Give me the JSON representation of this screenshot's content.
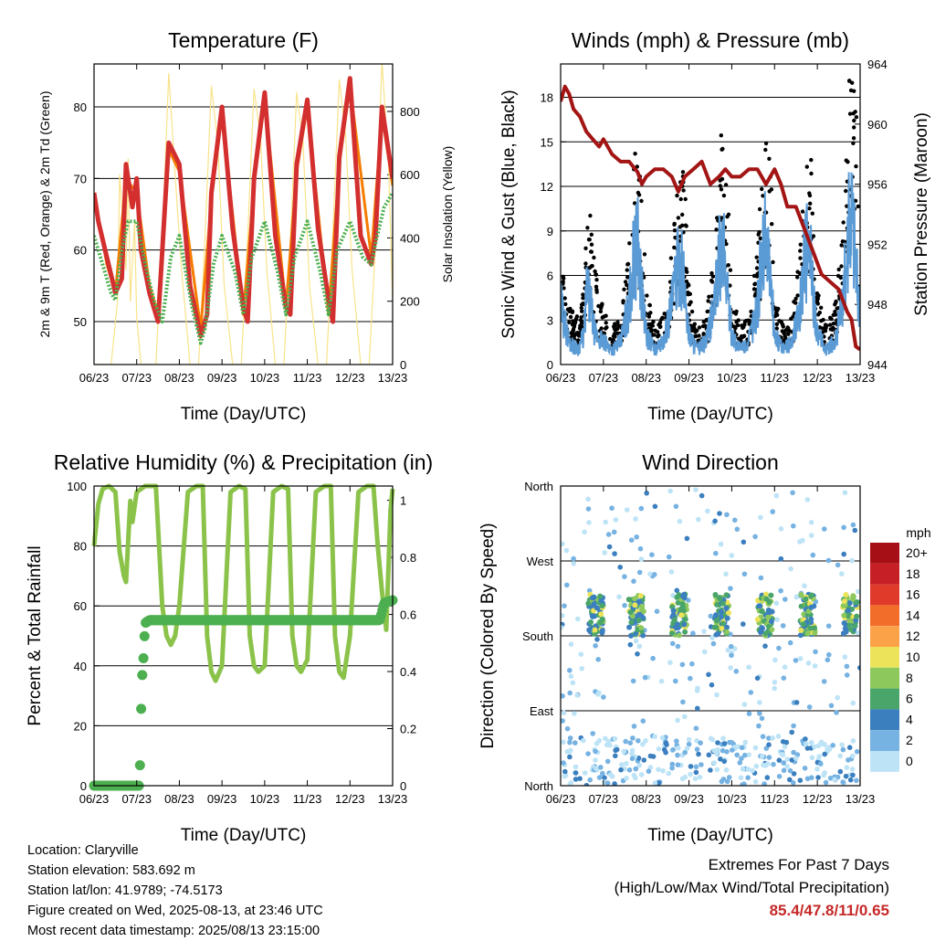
{
  "chart_data": [
    {
      "type": "line",
      "title": "Temperature (F)",
      "xlabel": "Time (Day/UTC)",
      "ylabel": "2m & 9m T (Red, Orange) & 2m Td (Green)",
      "y2label": "Solar Insolation (Yellow)",
      "categories": [
        "06/23",
        "07/23",
        "08/23",
        "09/23",
        "10/23",
        "11/23",
        "12/23",
        "13/23"
      ],
      "ylim": [
        44,
        86
      ],
      "yticks": [
        50,
        60,
        70,
        80
      ],
      "y2lim": [
        0,
        950
      ],
      "y2ticks": [
        0,
        200,
        400,
        600,
        800
      ],
      "grid": true,
      "series": [
        {
          "name": "2m T",
          "color": "#d32f2f",
          "x": [
            0,
            0.1,
            0.3,
            0.5,
            0.65,
            0.75,
            0.9,
            1.0,
            1.1,
            1.3,
            1.5,
            1.75,
            2.0,
            2.25,
            2.5,
            2.65,
            2.75,
            3.0,
            3.25,
            3.5,
            3.6,
            3.75,
            4.0,
            4.25,
            4.5,
            4.6,
            4.75,
            5.0,
            5.25,
            5.5,
            5.6,
            5.75,
            6.0,
            6.25,
            6.5,
            6.6,
            6.75,
            7.0
          ],
          "values": [
            68,
            64,
            59,
            54,
            56,
            72,
            66,
            70,
            60,
            54,
            50,
            75,
            72,
            55,
            48,
            51,
            68,
            80,
            63,
            52,
            50,
            70,
            82,
            62,
            52,
            51,
            72,
            81,
            63,
            53,
            50,
            73,
            84,
            62,
            58,
            62,
            80,
            70
          ]
        },
        {
          "name": "9m T",
          "color": "#f57c00",
          "x": [
            0,
            0.3,
            0.5,
            0.75,
            1.0,
            1.3,
            1.5,
            1.75,
            2.0,
            2.5,
            2.75,
            3.0,
            3.5,
            3.75,
            4.0,
            4.5,
            4.75,
            5.0,
            5.5,
            5.75,
            6.0,
            6.5,
            6.75,
            7.0
          ],
          "values": [
            68,
            58,
            54,
            70,
            68,
            55,
            51,
            74,
            71,
            49,
            67,
            79,
            51,
            69,
            81,
            52,
            71,
            80,
            51,
            72,
            83,
            59,
            79,
            69
          ]
        },
        {
          "name": "2m Td",
          "color": "#4caf50",
          "x": [
            0,
            0.2,
            0.4,
            0.5,
            0.65,
            0.8,
            1.0,
            1.2,
            1.4,
            1.6,
            1.8,
            2.0,
            2.3,
            2.5,
            2.6,
            2.8,
            3.0,
            3.3,
            3.5,
            3.7,
            4.0,
            4.3,
            4.5,
            4.7,
            5.0,
            5.3,
            5.5,
            5.7,
            6.0,
            6.3,
            6.5,
            6.6,
            6.8,
            7.0
          ],
          "values": [
            62,
            58,
            54,
            53,
            60,
            64,
            64,
            58,
            53,
            50,
            59,
            62,
            52,
            47,
            49,
            58,
            62,
            57,
            51,
            59,
            64,
            57,
            51,
            59,
            64,
            57,
            51,
            60,
            64,
            59,
            58,
            61,
            66,
            68
          ]
        },
        {
          "name": "Solar Insolation",
          "axis": "y2",
          "color": "#f8e38a",
          "x": [
            0,
            0.25,
            0.4,
            0.55,
            0.6,
            0.75,
            0.8,
            0.85,
            0.95,
            1.0,
            1.1,
            1.25,
            1.45,
            1.6,
            1.75,
            1.9,
            2.05,
            2.25,
            2.45,
            2.6,
            2.75,
            2.9,
            3.05,
            3.25,
            3.45,
            3.6,
            3.75,
            3.9,
            4.05,
            4.25,
            4.45,
            4.6,
            4.75,
            4.9,
            5.05,
            5.25,
            5.45,
            5.6,
            5.75,
            5.9,
            6.05,
            6.25,
            6.45,
            6.6,
            6.75,
            6.9,
            7.0
          ],
          "values": [
            0,
            0,
            0,
            200,
            600,
            300,
            650,
            200,
            450,
            150,
            0,
            0,
            0,
            400,
            920,
            600,
            300,
            0,
            0,
            400,
            880,
            700,
            250,
            0,
            0,
            400,
            870,
            720,
            300,
            0,
            0,
            380,
            860,
            700,
            250,
            0,
            0,
            420,
            900,
            720,
            300,
            0,
            0,
            380,
            960,
            650,
            200
          ]
        }
      ]
    },
    {
      "type": "line",
      "title": "Winds (mph) & Pressure (mb)",
      "xlabel": "Time (Day/UTC)",
      "ylabel": "Sonic Wind & Gust (Blue, Black)",
      "y2label": "Station Pressure (Maroon)",
      "categories": [
        "06/23",
        "07/23",
        "08/23",
        "09/23",
        "10/23",
        "11/23",
        "12/23",
        "13/23"
      ],
      "ylim": [
        0,
        20.25
      ],
      "yticks": [
        0,
        3,
        6,
        9,
        12,
        15,
        18
      ],
      "y2lim": [
        944,
        964
      ],
      "y2ticks": [
        944,
        948,
        952,
        956,
        960,
        964
      ],
      "grid": true,
      "series": [
        {
          "name": "Pressure",
          "axis": "y2",
          "color": "#a31515",
          "x": [
            0,
            0.1,
            0.2,
            0.3,
            0.45,
            0.6,
            0.75,
            0.9,
            1.0,
            1.2,
            1.4,
            1.6,
            1.8,
            1.9,
            2.0,
            2.2,
            2.4,
            2.6,
            2.75,
            2.9,
            3.1,
            3.3,
            3.5,
            3.7,
            3.85,
            4.0,
            4.2,
            4.4,
            4.6,
            4.8,
            5.0,
            5.15,
            5.3,
            5.5,
            5.7,
            5.9,
            6.1,
            6.3,
            6.5,
            6.7,
            6.8,
            6.9,
            7.0
          ],
          "values": [
            961.5,
            962.5,
            962,
            961,
            960.5,
            959.5,
            959,
            958.5,
            959,
            958,
            957.5,
            957.5,
            956.8,
            956,
            956.5,
            957,
            957,
            956.5,
            955.5,
            956.5,
            957,
            957.5,
            956,
            956.5,
            957,
            956.5,
            956.5,
            957,
            957,
            956,
            957,
            956,
            954.5,
            954.5,
            953,
            951.5,
            950,
            949.5,
            949,
            947.5,
            947,
            945.2,
            945
          ]
        },
        {
          "name": "Sonic Wind",
          "color": "#5b9bd5",
          "x": [
            0,
            0.2,
            0.4,
            0.55,
            0.6,
            0.7,
            0.8,
            1.0,
            1.2,
            1.4,
            1.6,
            1.7,
            1.8,
            1.9,
            2.0,
            2.2,
            2.4,
            2.6,
            2.7,
            2.8,
            2.9,
            3.0,
            3.2,
            3.4,
            3.6,
            3.7,
            3.8,
            3.9,
            4.0,
            4.2,
            4.4,
            4.6,
            4.7,
            4.8,
            4.9,
            5.0,
            5.2,
            5.4,
            5.6,
            5.7,
            5.8,
            5.9,
            6.0,
            6.2,
            6.4,
            6.6,
            6.7,
            6.8,
            6.9,
            7.0
          ],
          "values": [
            4,
            1.5,
            1,
            2,
            5,
            4,
            2,
            1.5,
            1,
            1.5,
            4,
            7,
            8,
            5,
            2,
            1,
            1.5,
            4,
            6,
            7,
            5,
            2,
            1,
            1.5,
            4,
            7,
            8,
            5,
            2,
            1,
            1.5,
            4,
            7,
            9,
            6,
            2,
            1,
            1.5,
            4,
            7,
            8,
            5,
            2,
            1,
            1.5,
            4,
            8,
            11,
            7,
            3
          ]
        },
        {
          "name": "Gust",
          "color": "#000000",
          "x": [
            0,
            0.2,
            0.4,
            0.55,
            0.65,
            0.8,
            1.0,
            1.2,
            1.4,
            1.6,
            1.75,
            1.9,
            2.0,
            2.2,
            2.4,
            2.6,
            2.75,
            2.9,
            3.0,
            3.2,
            3.4,
            3.6,
            3.75,
            3.9,
            4.0,
            4.2,
            4.4,
            4.6,
            4.75,
            4.9,
            5.0,
            5.2,
            5.4,
            5.6,
            5.75,
            5.9,
            6.0,
            6.2,
            6.4,
            6.6,
            6.75,
            6.85,
            6.95,
            7.0
          ],
          "values": [
            6,
            3,
            2.5,
            4,
            10,
            5,
            3,
            2,
            2.5,
            6,
            12,
            9,
            4,
            2,
            2.5,
            6,
            11,
            10,
            4,
            2,
            2.5,
            6,
            12,
            10,
            4,
            2,
            2.5,
            6,
            12,
            12,
            4,
            2,
            2.5,
            6,
            12,
            10,
            4,
            2,
            3,
            7,
            15,
            18,
            10,
            5
          ]
        }
      ]
    },
    {
      "type": "line",
      "title": "Relative Humidity (%) & Precipitation (in)",
      "xlabel": "Time (Day/UTC)",
      "ylabel": "Percent & Total Rainfall",
      "categories": [
        "06/23",
        "07/23",
        "08/23",
        "09/23",
        "10/23",
        "11/23",
        "12/23",
        "13/23"
      ],
      "ylim": [
        0,
        100
      ],
      "yticks": [
        0,
        20,
        40,
        60,
        80,
        100
      ],
      "y2lim": [
        0,
        1.05
      ],
      "y2ticks": [
        0.0,
        0.2,
        0.4,
        0.6,
        0.8,
        1.0
      ],
      "grid": true,
      "series": [
        {
          "name": "Relative Humidity",
          "color": "#8bc34a",
          "x": [
            0,
            0.1,
            0.2,
            0.35,
            0.5,
            0.6,
            0.7,
            0.75,
            0.85,
            0.9,
            1.0,
            1.2,
            1.45,
            1.6,
            1.7,
            1.8,
            1.9,
            2.0,
            2.2,
            2.4,
            2.55,
            2.65,
            2.75,
            2.85,
            3.0,
            3.2,
            3.4,
            3.55,
            3.65,
            3.75,
            3.85,
            4.0,
            4.2,
            4.4,
            4.55,
            4.65,
            4.75,
            4.85,
            5.0,
            5.2,
            5.4,
            5.55,
            5.65,
            5.75,
            5.85,
            6.0,
            6.2,
            6.4,
            6.55,
            6.65,
            6.75,
            6.85,
            6.95,
            7.0
          ],
          "values": [
            80,
            94,
            99,
            100,
            98,
            78,
            70,
            68,
            95,
            88,
            98,
            100,
            100,
            60,
            50,
            47,
            50,
            60,
            98,
            100,
            100,
            50,
            38,
            35,
            40,
            98,
            100,
            99,
            50,
            40,
            38,
            40,
            98,
            100,
            99,
            50,
            40,
            38,
            42,
            98,
            100,
            100,
            50,
            38,
            36,
            50,
            98,
            100,
            100,
            80,
            65,
            52,
            92,
            99
          ]
        },
        {
          "name": "Precipitation",
          "axis": "y2",
          "color": "#4caf50",
          "x": [
            0,
            0.55,
            1.05,
            1.08,
            1.1,
            1.12,
            1.14,
            1.16,
            1.2,
            1.3,
            3.0,
            5.0,
            6.5,
            6.7,
            6.8,
            7.0
          ],
          "values": [
            0,
            0,
            0,
            0.08,
            0.25,
            0.35,
            0.42,
            0.45,
            0.57,
            0.58,
            0.58,
            0.58,
            0.58,
            0.58,
            0.64,
            0.65
          ]
        }
      ]
    },
    {
      "type": "scatter",
      "title": "Wind Direction",
      "xlabel": "Time (Day/UTC)",
      "ylabel": "Direction (Colored By Speed)",
      "categories": [
        "06/23",
        "07/23",
        "08/23",
        "09/23",
        "10/23",
        "11/23",
        "12/23",
        "13/23"
      ],
      "ylim": [
        0,
        360
      ],
      "ytick_labels": [
        "North",
        "East",
        "South",
        "West",
        "North"
      ],
      "ytick_values": [
        0,
        90,
        180,
        270,
        360
      ],
      "grid": true,
      "legend": {
        "title": "mph",
        "labels": [
          "20+",
          "18",
          "16",
          "14",
          "12",
          "10",
          "8",
          "6",
          "4",
          "2",
          "0"
        ],
        "colors": [
          "#a50f15",
          "#c62026",
          "#e03a2a",
          "#f26c2a",
          "#fba249",
          "#ece35a",
          "#8dc85c",
          "#4aa56a",
          "#3b7fbf",
          "#76b2e2",
          "#bde3f6"
        ]
      }
    }
  ],
  "info": {
    "location": "Location: Claryville",
    "elevation": "Station elevation: 583.692 m",
    "latlon": "Station lat/lon: 41.9789; -74.5173",
    "created": "Figure created on Wed, 2025-08-13, at 23:46 UTC",
    "recent": "Most recent data timestamp: 2025/08/13 23:15:00"
  },
  "extremes": {
    "line1": "Extremes For Past 7 Days",
    "line2": "(High/Low/Max Wind/Total Precipitation)",
    "values": "85.4/47.8/11/0.65"
  }
}
